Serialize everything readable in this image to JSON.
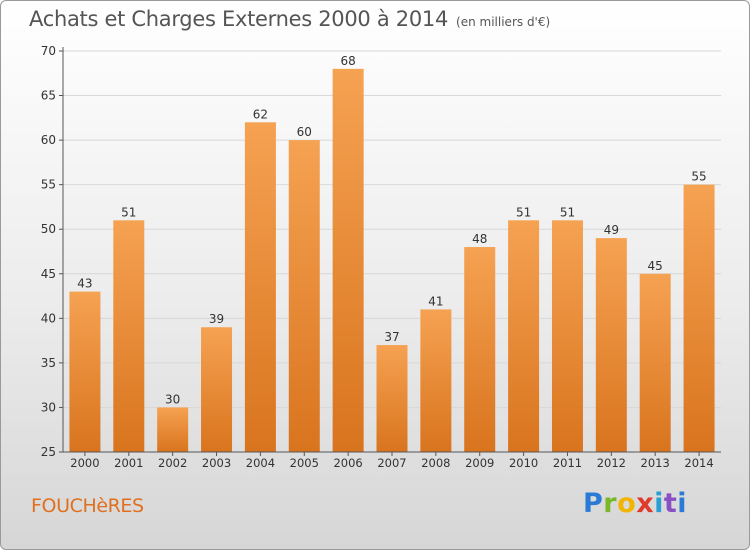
{
  "title": "Achats et Charges Externes 2000 à 2014",
  "unit": "(en milliers d'€)",
  "commune": "FOUCHèRES",
  "logo_letters": [
    "P",
    "r",
    "o",
    "x",
    "i",
    "t",
    "i"
  ],
  "colors": {
    "bar_light": "#f5a252",
    "bar_dark": "#d9741e",
    "gridline": "#d8d8d8",
    "axis": "#555555",
    "label": "#333333"
  },
  "chart_data": {
    "type": "bar",
    "categories": [
      "2000",
      "2001",
      "2002",
      "2003",
      "2004",
      "2005",
      "2006",
      "2007",
      "2008",
      "2009",
      "2010",
      "2011",
      "2012",
      "2013",
      "2014"
    ],
    "values": [
      43,
      51,
      30,
      39,
      62,
      60,
      68,
      37,
      41,
      48,
      51,
      51,
      49,
      45,
      55
    ],
    "ylim": [
      25,
      70
    ],
    "yticks": [
      25,
      30,
      35,
      40,
      45,
      50,
      55,
      60,
      65,
      70
    ],
    "grid": true,
    "data_labels": true
  }
}
